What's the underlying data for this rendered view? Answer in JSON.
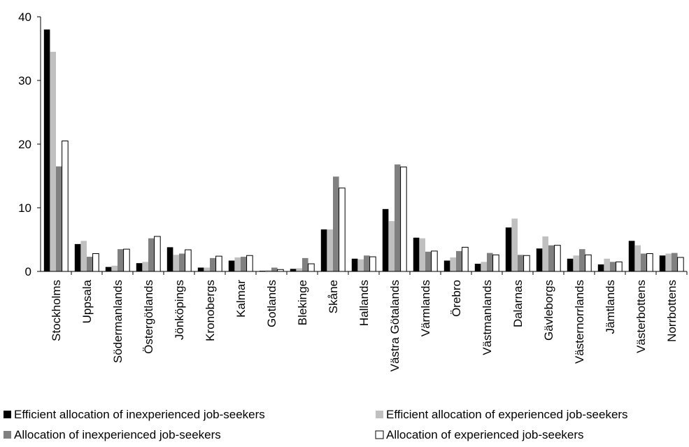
{
  "chart_data": {
    "type": "bar",
    "categories": [
      "Stockholms",
      "Uppsala",
      "Södermanlands",
      "Östergötlands",
      "Jönköpings",
      "Kronobergs",
      "Kalmar",
      "Gotlands",
      "Blekinge",
      "Skåne",
      "Hallands",
      "Västra Götalands",
      "Värmlands",
      "Örebro",
      "Västmanlands",
      "Dalarnas",
      "Gävleborgs",
      "Västernorrlands",
      "Jämtlands",
      "Västerbottens",
      "Norrbottens"
    ],
    "series": [
      {
        "name": "Efficient allocation of inexperienced job-seekers",
        "color": "#000000",
        "values": [
          38,
          4.3,
          0.7,
          1.3,
          3.8,
          0.6,
          1.7,
          0.1,
          0.4,
          6.6,
          2.0,
          9.8,
          5.3,
          1.7,
          1.2,
          6.9,
          3.6,
          2.0,
          1.1,
          4.8,
          2.5
        ]
      },
      {
        "name": "Efficient allocation of experienced job-seekers",
        "color": "#c0c0c0",
        "values": [
          34.5,
          4.8,
          0.9,
          1.5,
          2.6,
          0.6,
          2.2,
          0.2,
          0.5,
          6.6,
          1.9,
          7.9,
          5.2,
          2.2,
          1.5,
          8.3,
          5.5,
          2.5,
          2.0,
          4.1,
          2.8
        ]
      },
      {
        "name": "Allocation of inexperienced job-seekers",
        "color": "#808080",
        "values": [
          16.5,
          2.3,
          3.5,
          5.2,
          2.8,
          2.1,
          2.3,
          0.6,
          2.1,
          14.9,
          2.5,
          16.8,
          3.1,
          3.2,
          2.9,
          2.6,
          4.1,
          3.5,
          1.5,
          2.8,
          2.9
        ]
      },
      {
        "name": "Allocation of experienced job-seekers",
        "color": "#ffffff",
        "values": [
          20.5,
          2.8,
          3.5,
          5.5,
          3.4,
          2.4,
          2.5,
          0.3,
          1.2,
          13.1,
          2.3,
          16.4,
          3.2,
          3.8,
          2.6,
          2.5,
          4.1,
          2.6,
          1.5,
          2.8,
          2.2
        ]
      }
    ],
    "ylim": [
      0,
      40
    ],
    "yticks": [
      0,
      10,
      20,
      30,
      40
    ],
    "grid": false
  }
}
